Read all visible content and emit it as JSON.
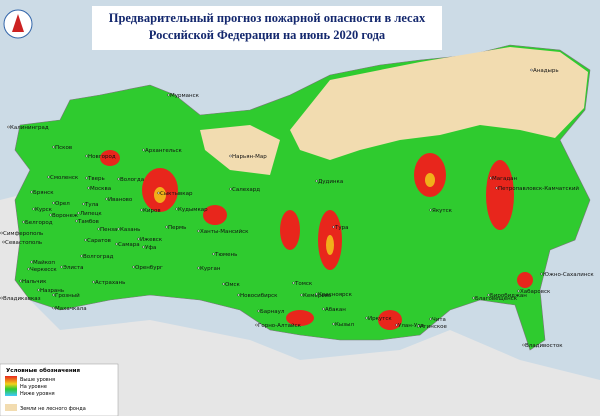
{
  "title": [
    "Предварительный прогноз пожарной опасности в лесах",
    "Российской Федерации на  июнь 2020 года"
  ],
  "legend": {
    "title": "Условные обозначения",
    "items": [
      "Выше уровня",
      "На уровне",
      "Ниже уровня",
      "Земли не лесного фонда"
    ]
  },
  "cities": [
    "Мурманск",
    "Калининград",
    "Псков",
    "Новгород",
    "Архангельск",
    "Нарьян-Мар",
    "Смоленск",
    "Тверь",
    "Вологда",
    "Брянск",
    "Москва",
    "Иваново",
    "Сыктывкар",
    "Салехард",
    "Дудинка",
    "Магадан",
    "Петропавловск-Камчатский",
    "Анадырь",
    "Орел",
    "Тула",
    "Курск",
    "Воронеж",
    "Липецк",
    "Киров",
    "Кудымкар",
    "Пермь",
    "Ханты-Мансийск",
    "Якутск",
    "Тура",
    "Белгород",
    "Тамбов",
    "Пенза",
    "Казань",
    "Ижевск",
    "Симферополь",
    "Саратов",
    "Самара",
    "Уфа",
    "Севастополь",
    "Волгоград",
    "Майкоп",
    "Черкесск",
    "Элиста",
    "Оренбург",
    "Тюмень",
    "Курган",
    "Омск",
    "Томск",
    "Новосибирск",
    "Кемерово",
    "Красноярск",
    "Нальчик",
    "Назрань",
    "Астрахань",
    "Грозный",
    "Владикавказ",
    "Махачкала",
    "Барнаул",
    "Горно-Алтайск",
    "Абакан",
    "Кызыл",
    "Иркутск",
    "Улан-Удэ",
    "Чита",
    "Агинское",
    "Благовещенск",
    "Биробиджан",
    "Хабаровск",
    "Южно-Сахалинск",
    "Владивосток"
  ]
}
